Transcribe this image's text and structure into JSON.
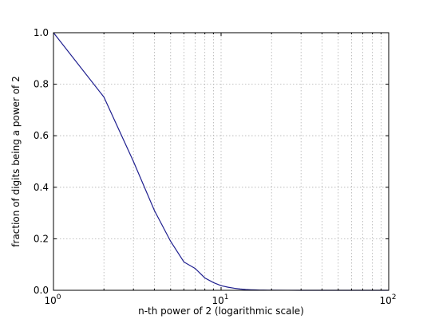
{
  "chart_data": {
    "type": "line",
    "title": "",
    "xlabel": "n-th power of 2 (logarithmic scale)",
    "ylabel": "fraction of digits being a power of 2",
    "xscale": "log",
    "xlim": [
      1,
      100
    ],
    "ylim": [
      0.0,
      1.0
    ],
    "grid": true,
    "legend": "none",
    "x_ticks": [
      {
        "value": 1,
        "base": "10",
        "exp": "0"
      },
      {
        "value": 10,
        "base": "10",
        "exp": "1"
      },
      {
        "value": 100,
        "base": "10",
        "exp": "2"
      }
    ],
    "y_ticks": [
      {
        "value": 0.0,
        "label": "0.0"
      },
      {
        "value": 0.2,
        "label": "0.2"
      },
      {
        "value": 0.4,
        "label": "0.4"
      },
      {
        "value": 0.6,
        "label": "0.6"
      },
      {
        "value": 0.8,
        "label": "0.8"
      },
      {
        "value": 1.0,
        "label": "1.0"
      }
    ],
    "series": [
      {
        "color": "#1f1f8f",
        "x": [
          1,
          2,
          3,
          4,
          5,
          6,
          7,
          8,
          9,
          10,
          11,
          12,
          13,
          14,
          15,
          16,
          17,
          18,
          19,
          20,
          25,
          30,
          40,
          50,
          60,
          70,
          80,
          90,
          100
        ],
        "y": [
          1.0,
          0.75,
          0.5,
          0.31,
          0.19,
          0.11,
          0.085,
          0.048,
          0.03,
          0.018,
          0.012,
          0.008,
          0.005,
          0.003,
          0.002,
          0.0015,
          0.001,
          0.0008,
          0.0006,
          0.0005,
          0.0002,
          0.0001,
          0.0,
          0.0,
          0.0,
          0.0,
          0.0,
          0.0,
          0.0
        ]
      }
    ]
  }
}
